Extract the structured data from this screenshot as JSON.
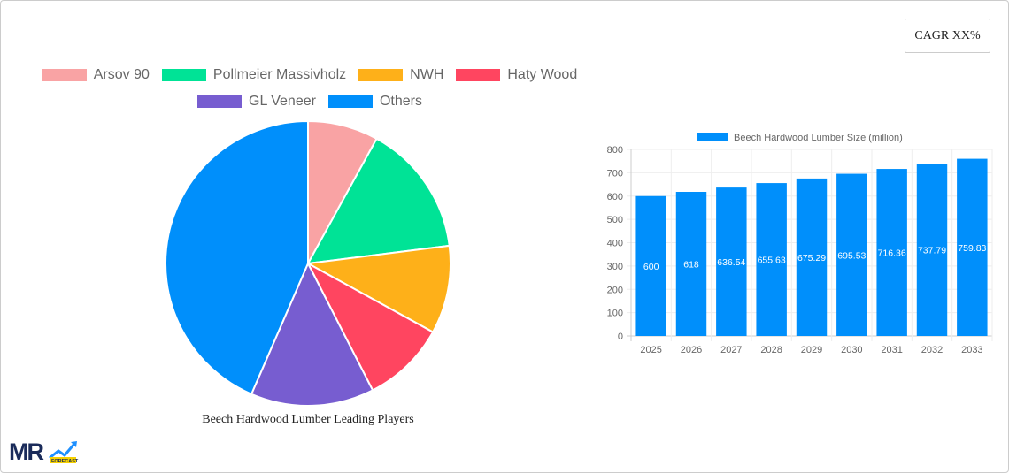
{
  "cagr_label": "CAGR XX%",
  "pie": {
    "title": "Beech Hardwood Lumber Leading Players",
    "legend": [
      {
        "label": "Arsov 90",
        "color": "#f9a3a4"
      },
      {
        "label": "Pollmeier Massivholz",
        "color": "#00e396"
      },
      {
        "label": "NWH",
        "color": "#feb019"
      },
      {
        "label": "Haty Wood",
        "color": "#ff4560"
      },
      {
        "label": "GL Veneer",
        "color": "#775dd0"
      },
      {
        "label": "Others",
        "color": "#008ffb"
      }
    ]
  },
  "chart_data": [
    {
      "type": "pie",
      "title": "Beech Hardwood Lumber Leading Players",
      "labels": [
        "Arsov 90",
        "Pollmeier Massivholz",
        "NWH",
        "Haty Wood",
        "GL Veneer",
        "Others"
      ],
      "values": [
        8,
        15,
        10,
        9.5,
        14,
        43.5
      ],
      "legend_position": "top"
    },
    {
      "type": "bar",
      "legend": "Beech Hardwood Lumber Size (million)",
      "color": "#008ffb",
      "categories": [
        "2025",
        "2026",
        "2027",
        "2028",
        "2029",
        "2030",
        "2031",
        "2032",
        "2033"
      ],
      "values": [
        600,
        618,
        636.54,
        655.63,
        675.29,
        695.53,
        716.36,
        737.79,
        759.83
      ],
      "data_labels": [
        "600",
        "618",
        "636.54",
        "655.63",
        "675.29",
        "695.53",
        "716.36",
        "737.79",
        "759.83"
      ],
      "ylim": [
        0,
        800
      ],
      "yticks": [
        0,
        100,
        200,
        300,
        400,
        500,
        600,
        700,
        800
      ],
      "grid": true
    }
  ],
  "logo": {
    "text": "MR",
    "sub": "FORECAST"
  }
}
